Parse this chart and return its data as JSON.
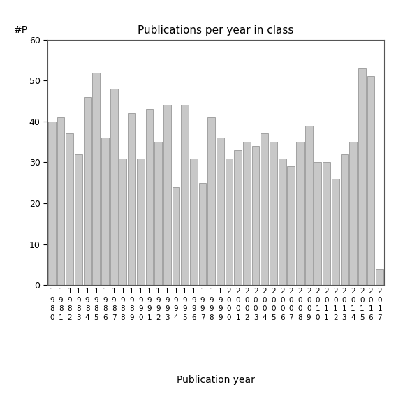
{
  "title": "Publications per year in class",
  "xlabel": "Publication year",
  "ylabel": "#P",
  "years": [
    "1980",
    "1981",
    "1982",
    "1983",
    "1984",
    "1985",
    "1986",
    "1987",
    "1988",
    "1989",
    "1990",
    "1991",
    "1992",
    "1993",
    "1994",
    "1995",
    "1996",
    "1997",
    "1998",
    "1999",
    "2000",
    "2001",
    "2002",
    "2003",
    "2004",
    "2005",
    "2006",
    "2007",
    "2008",
    "2009",
    "2010",
    "2011",
    "2012",
    "2013",
    "2014",
    "2015",
    "2016",
    "2017"
  ],
  "values": [
    40,
    41,
    37,
    32,
    46,
    52,
    36,
    48,
    31,
    42,
    31,
    43,
    35,
    44,
    24,
    44,
    31,
    25,
    41,
    36,
    31,
    33,
    35,
    34,
    37,
    35,
    31,
    29,
    35,
    39,
    30,
    30,
    26,
    32,
    35,
    53,
    51,
    4
  ],
  "bar_color": "#c8c8c8",
  "bar_edge_color": "#888888",
  "ylim": [
    0,
    60
  ],
  "yticks": [
    0,
    10,
    20,
    30,
    40,
    50,
    60
  ],
  "background_color": "#ffffff",
  "title_fontsize": 11,
  "label_fontsize": 10,
  "tick_fontsize": 9
}
